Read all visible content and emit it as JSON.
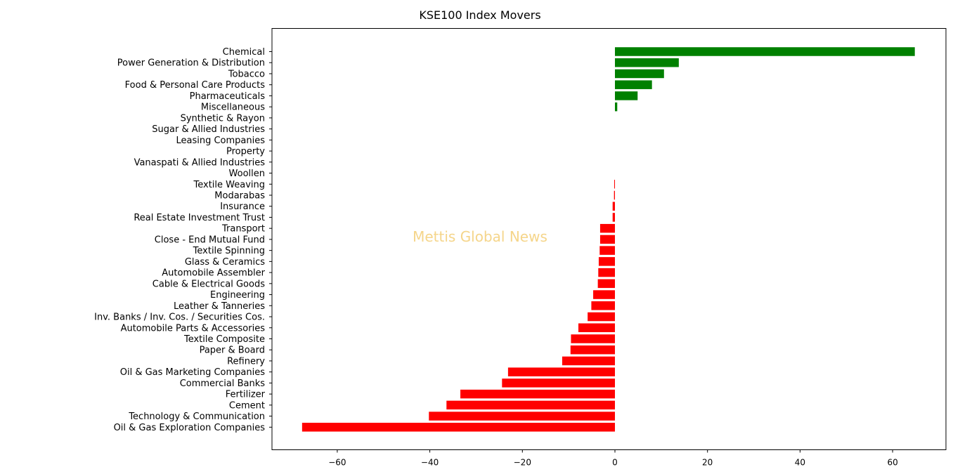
{
  "chart_data": {
    "type": "bar",
    "orientation": "horizontal",
    "title": "KSE100 Index Movers",
    "xlabel": "",
    "ylabel": "",
    "xlim": [
      -72,
      72
    ],
    "xticks": [
      -60,
      -40,
      -20,
      0,
      20,
      40,
      60
    ],
    "xtick_labels": [
      "−60",
      "−40",
      "−20",
      "0",
      "20",
      "40",
      "60"
    ],
    "grid": false,
    "colors": {
      "positive": "#008000",
      "negative": "#ff0000"
    },
    "categories": [
      "Chemical",
      "Power Generation & Distribution",
      "Tobacco",
      "Food & Personal Care Products",
      "Pharmaceuticals",
      "Miscellaneous",
      "Synthetic & Rayon",
      "Sugar & Allied Industries",
      "Leasing Companies",
      "Property",
      "Vanaspati & Allied Industries",
      "Woollen",
      "Textile Weaving",
      "Modarabas",
      "Insurance",
      "Real Estate Investment Trust",
      "Transport",
      "Close - End Mutual Fund",
      "Textile Spinning",
      "Glass & Ceramics",
      "Automobile Assembler",
      "Cable & Electrical Goods",
      "Engineering",
      "Leather & Tanneries",
      "Inv. Banks / Inv. Cos. / Securities Cos.",
      "Automobile Parts & Accessories",
      "Textile Composite",
      "Paper & Board",
      "Refinery",
      "Oil & Gas Marketing Companies",
      "Commercial Banks",
      "Fertilizer",
      "Cement",
      "Technology & Communication",
      "Oil & Gas Exploration Companies"
    ],
    "values": [
      64.8,
      13.8,
      10.6,
      8.0,
      4.9,
      0.5,
      0,
      0,
      0,
      0,
      0,
      0,
      -0.15,
      -0.2,
      -0.5,
      -0.5,
      -3.2,
      -3.2,
      -3.3,
      -3.5,
      -3.6,
      -3.7,
      -4.7,
      -5.1,
      -5.9,
      -7.9,
      -9.5,
      -9.6,
      -11.4,
      -23.1,
      -24.4,
      -33.4,
      -36.4,
      -40.2,
      -67.6
    ]
  },
  "watermark": "Mettis Global News"
}
